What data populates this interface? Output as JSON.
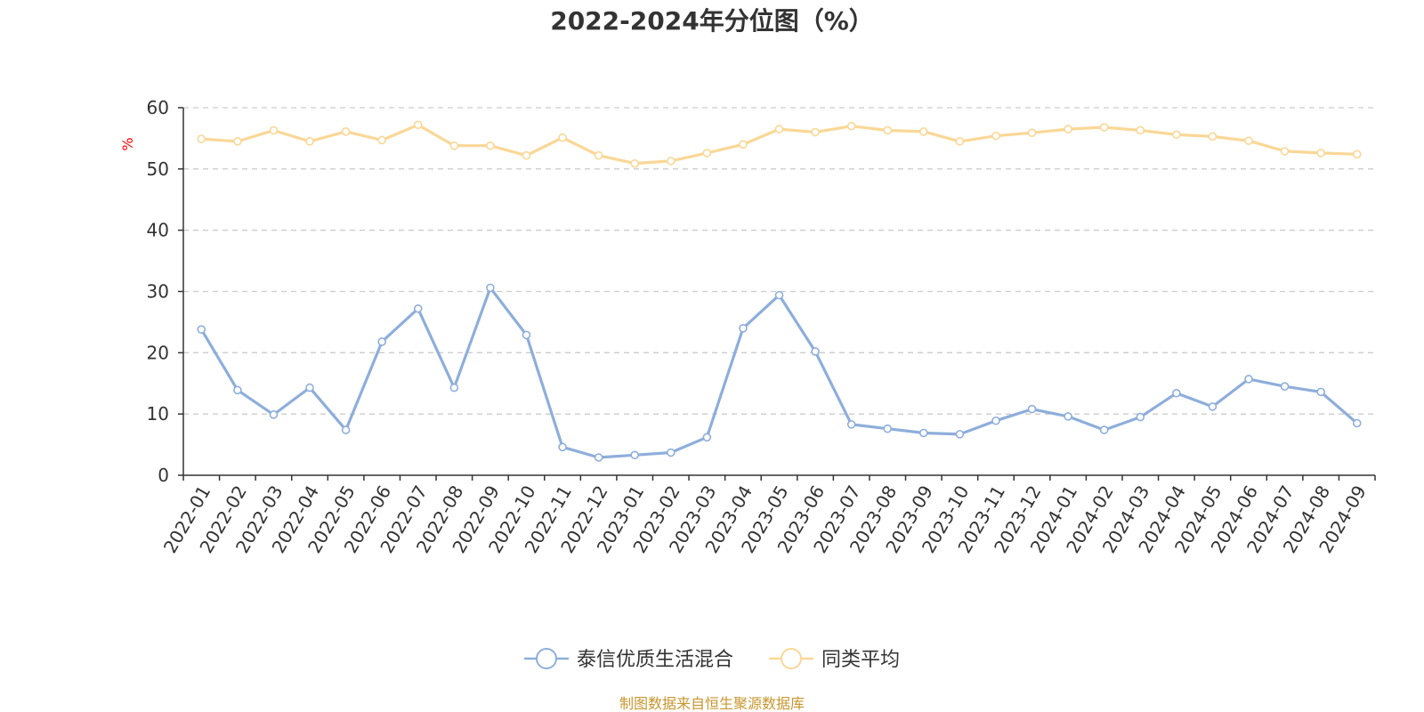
{
  "chart_data": {
    "type": "line",
    "title": "2022-2024年分位图（%）",
    "ylabel": "%",
    "xlabel": "",
    "ylim": [
      0,
      60
    ],
    "yticks": [
      0,
      10,
      20,
      30,
      40,
      50,
      60
    ],
    "grid": true,
    "legend_position": "bottom-center",
    "categories": [
      "2022-01",
      "2022-02",
      "2022-03",
      "2022-04",
      "2022-05",
      "2022-06",
      "2022-07",
      "2022-08",
      "2022-09",
      "2022-10",
      "2022-11",
      "2022-12",
      "2023-01",
      "2023-02",
      "2023-03",
      "2023-04",
      "2023-05",
      "2023-06",
      "2023-07",
      "2023-08",
      "2023-09",
      "2023-10",
      "2023-11",
      "2023-12",
      "2024-01",
      "2024-02",
      "2024-03",
      "2024-04",
      "2024-05",
      "2024-06",
      "2024-07",
      "2024-08",
      "2024-09"
    ],
    "series": [
      {
        "name": "泰信优质生活混合",
        "color": "#8eaedb",
        "values": [
          23.8,
          13.9,
          9.9,
          14.3,
          7.4,
          21.8,
          27.2,
          14.3,
          30.6,
          22.9,
          4.6,
          2.9,
          3.3,
          3.7,
          6.2,
          24.0,
          29.4,
          20.2,
          8.3,
          7.6,
          6.9,
          6.7,
          8.9,
          10.8,
          9.6,
          7.4,
          9.5,
          13.4,
          11.2,
          15.7,
          14.5,
          13.6,
          8.5
        ]
      },
      {
        "name": "同类平均",
        "color": "#fad796",
        "values": [
          54.9,
          54.5,
          56.3,
          54.5,
          56.1,
          54.7,
          57.2,
          53.8,
          53.8,
          52.2,
          55.1,
          52.2,
          50.9,
          51.3,
          52.6,
          54.0,
          56.5,
          56.0,
          57.0,
          56.3,
          56.1,
          54.5,
          55.4,
          55.9,
          56.5,
          56.8,
          56.3,
          55.6,
          55.3,
          54.6,
          52.9,
          52.6,
          52.4
        ]
      }
    ]
  },
  "footer": {
    "source": "制图数据来自恒生聚源数据库"
  }
}
